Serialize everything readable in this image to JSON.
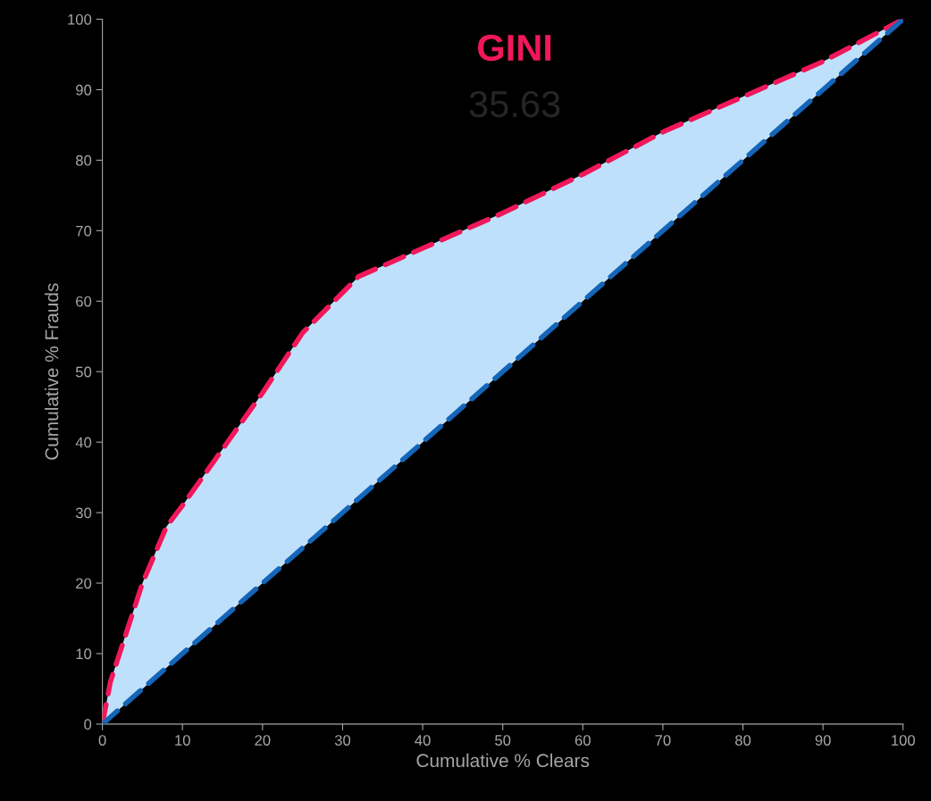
{
  "chart_data": {
    "type": "line",
    "title": "GINI",
    "subtitle": "35.63",
    "xlabel": "Cumulative % Clears",
    "ylabel": "Cumulative % Frauds",
    "x": [
      0,
      1,
      5,
      8,
      10,
      15,
      20,
      25,
      32,
      40,
      50,
      60,
      70,
      80,
      90,
      100
    ],
    "series": [
      {
        "color": "#f0185a",
        "values": [
          0,
          6,
          20,
          28,
          31,
          39,
          47,
          55.5,
          63.5,
          67.5,
          72.5,
          78,
          84,
          89,
          94,
          100
        ],
        "lower": [
          0,
          1,
          5,
          8,
          10,
          15,
          20,
          25,
          32,
          40,
          50,
          60,
          70,
          80,
          90,
          100
        ],
        "upper": [
          0,
          6,
          20,
          28,
          31,
          39,
          47,
          55.5,
          63.5,
          67.5,
          72.5,
          78,
          84,
          89,
          94,
          100
        ]
      },
      {
        "color": "#1565b8",
        "values": [
          0,
          1,
          5,
          8,
          10,
          15,
          20,
          25,
          32,
          40,
          50,
          60,
          70,
          80,
          90,
          100
        ]
      }
    ],
    "xlim": [
      0,
      100
    ],
    "ylim": [
      0,
      100
    ],
    "xticks": [
      0,
      10,
      20,
      30,
      40,
      50,
      60,
      70,
      80,
      90,
      100
    ],
    "yticks": [
      0,
      10,
      20,
      30,
      40,
      50,
      60,
      70,
      80,
      90,
      100
    ],
    "grid": false,
    "legend": false,
    "line_style": "dashed",
    "marker": "none"
  }
}
